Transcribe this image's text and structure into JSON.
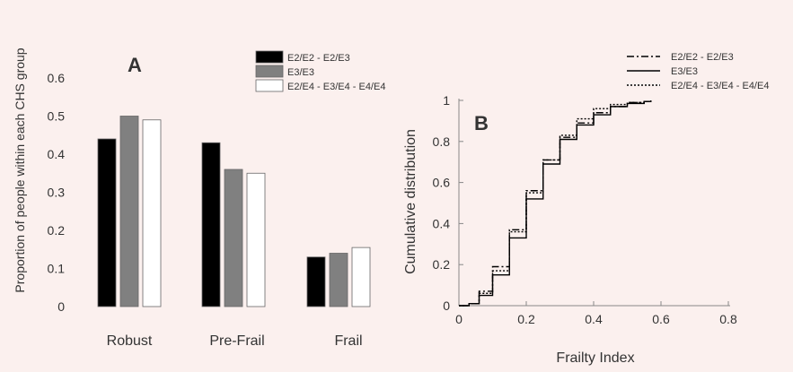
{
  "chart_data": [
    {
      "type": "bar",
      "panel_label": "A",
      "ylabel": "Proportion of people within each CHS group",
      "categories": [
        "Robust",
        "Pre-Frail",
        "Frail"
      ],
      "ylim": [
        0,
        0.65
      ],
      "yticks": [
        "0",
        "0.1",
        "0.2",
        "0.3",
        "0.4",
        "0.5",
        "0.6"
      ],
      "legend_placement": "top-right",
      "series": [
        {
          "name": "E2/E2 - E2/E3",
          "color": "#000000",
          "values": [
            0.44,
            0.43,
            0.13
          ]
        },
        {
          "name": "E3/E3",
          "color": "#808080",
          "values": [
            0.5,
            0.36,
            0.14
          ]
        },
        {
          "name": "E2/E4 - E3/E4 - E4/E4",
          "color": "#ffffff",
          "values": [
            0.49,
            0.35,
            0.155
          ]
        }
      ]
    },
    {
      "type": "line",
      "panel_label": "B",
      "xlabel": "Frailty Index",
      "ylabel": "Cumulative distribution",
      "xlim": [
        0,
        0.8
      ],
      "ylim": [
        0,
        1
      ],
      "xticks": [
        "0",
        "0.2",
        "0.4",
        "0.6",
        "0.8"
      ],
      "yticks": [
        "0",
        "0.2",
        "0.4",
        "0.6",
        "0.8",
        "1"
      ],
      "legend_placement": "top-right",
      "series": [
        {
          "name": "E2/E2 - E2/E3",
          "style": "dashdot",
          "x": [
            0,
            0.03,
            0.06,
            0.1,
            0.15,
            0.2,
            0.25,
            0.3,
            0.35,
            0.4,
            0.45,
            0.5,
            0.55,
            0.57
          ],
          "y": [
            0,
            0.01,
            0.07,
            0.19,
            0.37,
            0.56,
            0.71,
            0.82,
            0.89,
            0.94,
            0.97,
            0.99,
            0.995,
            1.0
          ]
        },
        {
          "name": "E3/E3",
          "style": "solid",
          "x": [
            0,
            0.03,
            0.06,
            0.1,
            0.15,
            0.2,
            0.25,
            0.3,
            0.35,
            0.4,
            0.45,
            0.5,
            0.55,
            0.57
          ],
          "y": [
            0,
            0.01,
            0.05,
            0.15,
            0.33,
            0.52,
            0.69,
            0.81,
            0.88,
            0.93,
            0.97,
            0.985,
            0.995,
            1.0
          ]
        },
        {
          "name": "E2/E4 - E3/E4 - E4/E4",
          "style": "dotted",
          "x": [
            0,
            0.03,
            0.06,
            0.1,
            0.15,
            0.2,
            0.25,
            0.3,
            0.35,
            0.4,
            0.45,
            0.5,
            0.55,
            0.57
          ],
          "y": [
            0,
            0.01,
            0.06,
            0.17,
            0.36,
            0.55,
            0.71,
            0.83,
            0.91,
            0.96,
            0.98,
            0.99,
            0.995,
            1.0
          ]
        }
      ]
    }
  ]
}
